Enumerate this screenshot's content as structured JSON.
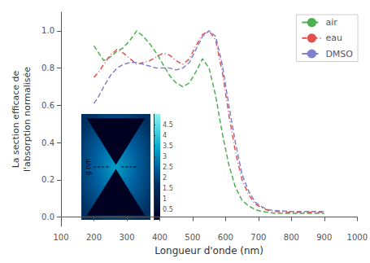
{
  "chart_data": {
    "type": "line",
    "xlabel": "Longueur d'onde (nm)",
    "ylabel": "La section efficace de\nl'absorption normalisée",
    "xlim": [
      100,
      1000
    ],
    "ylim": [
      -0.05,
      1.1
    ],
    "xticks": [
      100,
      200,
      300,
      400,
      500,
      600,
      700,
      800,
      900,
      1000
    ],
    "yticks": [
      {
        "value": 0.0,
        "label": "0.0"
      },
      0.2,
      0.4,
      0.6,
      0.8,
      {
        "value": 1.0,
        "label": "1.0"
      }
    ],
    "grid": false,
    "legend": "upper right",
    "series": [
      {
        "name": "air",
        "color": "#4caf50",
        "line_style": "dashed",
        "x": [
          200,
          215,
          230,
          250,
          270,
          290,
          310,
          330,
          350,
          370,
          390,
          410,
          430,
          450,
          470,
          490,
          510,
          530,
          550,
          570,
          590,
          610,
          630,
          650,
          670,
          690,
          710,
          730,
          750,
          800,
          850,
          900
        ],
        "values": [
          0.92,
          0.88,
          0.84,
          0.86,
          0.89,
          0.91,
          0.95,
          1.0,
          0.97,
          0.93,
          0.88,
          0.82,
          0.76,
          0.72,
          0.7,
          0.72,
          0.78,
          0.85,
          0.8,
          0.65,
          0.45,
          0.28,
          0.16,
          0.09,
          0.06,
          0.04,
          0.03,
          0.025,
          0.02,
          0.02,
          0.02,
          0.02
        ]
      },
      {
        "name": "eau",
        "color": "#e05050",
        "line_style": "dashdot",
        "x": [
          200,
          215,
          230,
          250,
          270,
          290,
          310,
          330,
          350,
          370,
          390,
          410,
          430,
          450,
          470,
          490,
          510,
          530,
          550,
          570,
          590,
          610,
          630,
          650,
          670,
          690,
          710,
          730,
          750,
          800,
          850,
          900
        ],
        "values": [
          0.75,
          0.78,
          0.82,
          0.87,
          0.9,
          0.88,
          0.85,
          0.82,
          0.83,
          0.84,
          0.86,
          0.88,
          0.87,
          0.84,
          0.82,
          0.85,
          0.92,
          0.98,
          1.0,
          0.95,
          0.78,
          0.55,
          0.35,
          0.2,
          0.12,
          0.07,
          0.05,
          0.035,
          0.03,
          0.025,
          0.025,
          0.025
        ]
      },
      {
        "name": "DMSO",
        "color": "#8080cc",
        "line_style": "dashed",
        "x": [
          200,
          215,
          230,
          250,
          270,
          290,
          310,
          330,
          350,
          370,
          390,
          410,
          430,
          450,
          470,
          490,
          510,
          530,
          550,
          570,
          590,
          610,
          630,
          650,
          670,
          690,
          710,
          730,
          750,
          800,
          850,
          900
        ],
        "values": [
          0.61,
          0.65,
          0.7,
          0.76,
          0.8,
          0.82,
          0.83,
          0.83,
          0.82,
          0.81,
          0.8,
          0.8,
          0.8,
          0.79,
          0.8,
          0.83,
          0.9,
          0.97,
          1.0,
          0.97,
          0.82,
          0.6,
          0.4,
          0.23,
          0.14,
          0.08,
          0.055,
          0.04,
          0.035,
          0.03,
          0.03,
          0.03
        ]
      }
    ],
    "annotations": [
      "g nm"
    ],
    "colorbar_range": [
      0,
      5
    ],
    "colorbar_ticks": [
      0.5,
      1,
      1.5,
      2,
      2.5,
      3,
      3.5,
      4,
      4.5
    ],
    "colorbar_colors": [
      "#000020",
      "#001840",
      "#003060",
      "#0060a0",
      "#00a0c8",
      "#40d0e0",
      "#90f0f0"
    ]
  }
}
